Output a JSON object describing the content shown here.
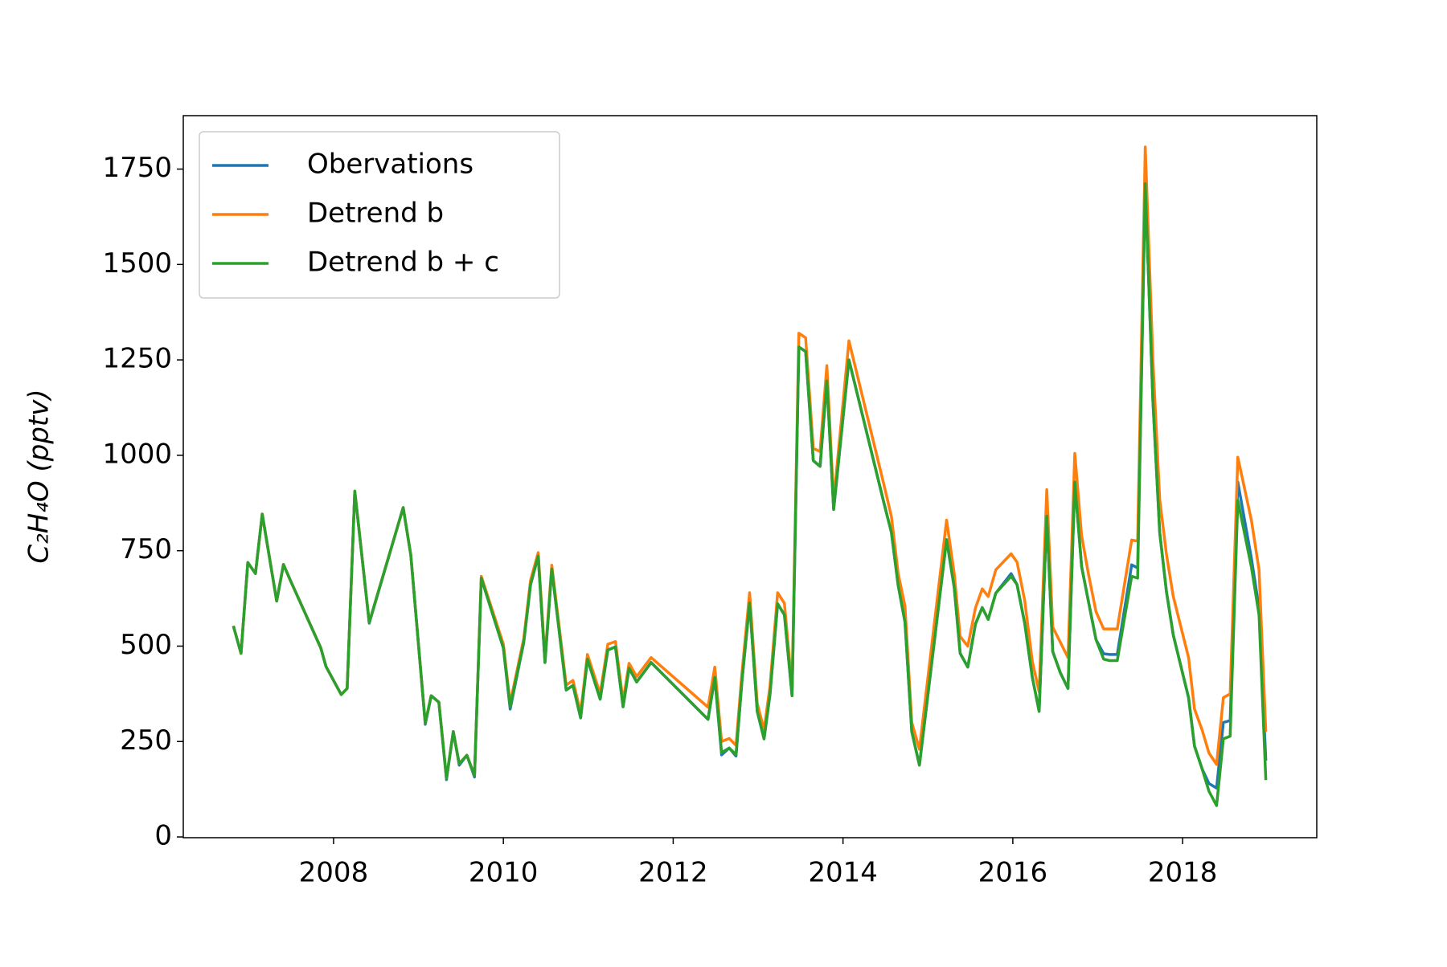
{
  "chart_data": {
    "type": "line",
    "ylabel": "C₂H₄O (pptv)",
    "x": [
      2006.82,
      2006.91,
      2006.99,
      2007.08,
      2007.16,
      2007.33,
      2007.41,
      2007.49,
      2007.85,
      2007.91,
      2008.09,
      2008.16,
      2008.25,
      2008.42,
      2008.82,
      2008.91,
      2009.08,
      2009.15,
      2009.24,
      2009.33,
      2009.41,
      2009.48,
      2009.57,
      2009.66,
      2009.74,
      2010.0,
      2010.08,
      2010.24,
      2010.32,
      2010.41,
      2010.49,
      2010.57,
      2010.74,
      2010.82,
      2010.91,
      2010.99,
      2011.14,
      2011.23,
      2011.32,
      2011.41,
      2011.48,
      2011.57,
      2011.74,
      2012.41,
      2012.49,
      2012.57,
      2012.66,
      2012.74,
      2012.81,
      2012.9,
      2012.99,
      2013.07,
      2013.14,
      2013.23,
      2013.31,
      2013.4,
      2013.48,
      2013.56,
      2013.65,
      2013.73,
      2013.81,
      2013.89,
      2014.07,
      2014.48,
      2014.57,
      2014.65,
      2014.73,
      2014.81,
      2014.9,
      2015.22,
      2015.31,
      2015.38,
      2015.47,
      2015.56,
      2015.64,
      2015.71,
      2015.8,
      2015.98,
      2016.05,
      2016.14,
      2016.23,
      2016.31,
      2016.4,
      2016.47,
      2016.56,
      2016.65,
      2016.73,
      2016.81,
      2016.89,
      2016.98,
      2017.07,
      2017.14,
      2017.23,
      2017.4,
      2017.47,
      2017.56,
      2017.65,
      2017.73,
      2017.81,
      2017.89,
      2018.07,
      2018.14,
      2018.23,
      2018.31,
      2018.4,
      2018.48,
      2018.56,
      2018.65,
      2018.81,
      2018.9,
      2018.98
    ],
    "series": [
      {
        "name": "Obervations",
        "color": "#1f77b4",
        "values": [
          553,
          481,
          719,
          690,
          846,
          618,
          714,
          673,
          495,
          447,
          373,
          389,
          906,
          560,
          863,
          738,
          295,
          370,
          353,
          150,
          276,
          188,
          214,
          157,
          678,
          495,
          335,
          510,
          661,
          736,
          457,
          702,
          385,
          397,
          312,
          466,
          361,
          490,
          498,
          341,
          442,
          406,
          457,
          308,
          418,
          215,
          233,
          212,
          409,
          613,
          329,
          257,
          373,
          611,
          582,
          370,
          1284,
          1272,
          986,
          971,
          1195,
          858,
          1250,
          877,
          798,
          659,
          563,
          276,
          188,
          779,
          654,
          481,
          445,
          558,
          601,
          570,
          639,
          690,
          661,
          560,
          418,
          329,
          841,
          486,
          430,
          389,
          930,
          709,
          618,
          517,
          480,
          478,
          478,
          713,
          705,
          1712,
          1142,
          798,
          642,
          529,
          365,
          238,
          178,
          140,
          128,
          300,
          305,
          930,
          730,
          600,
          200
        ]
      },
      {
        "name": "Detrend b",
        "color": "#ff7f0e",
        "values": [
          553,
          481,
          719,
          690,
          846,
          618,
          714,
          673,
          495,
          447,
          373,
          389,
          906,
          562,
          863,
          738,
          298,
          370,
          353,
          154,
          276,
          192,
          214,
          161,
          683,
          505,
          350,
          520,
          672,
          745,
          468,
          712,
          398,
          410,
          325,
          478,
          375,
          505,
          512,
          355,
          455,
          420,
          470,
          340,
          445,
          250,
          258,
          240,
          430,
          640,
          350,
          280,
          395,
          640,
          612,
          390,
          1320,
          1308,
          1018,
          1010,
          1235,
          880,
          1300,
          925,
          840,
          690,
          605,
          300,
          230,
          830,
          690,
          525,
          500,
          600,
          650,
          630,
          700,
          742,
          720,
          620,
          460,
          380,
          910,
          550,
          510,
          470,
          1005,
          790,
          690,
          590,
          545,
          545,
          545,
          778,
          775,
          1808,
          1250,
          885,
          740,
          630,
          470,
          335,
          280,
          220,
          190,
          365,
          375,
          995,
          830,
          700,
          275
        ]
      },
      {
        "name": "Detrend b + c",
        "color": "#2ca02c",
        "values": [
          553,
          481,
          719,
          690,
          846,
          618,
          714,
          673,
          495,
          447,
          373,
          389,
          906,
          562,
          863,
          738,
          298,
          370,
          353,
          154,
          276,
          192,
          214,
          161,
          678,
          495,
          341,
          510,
          661,
          736,
          457,
          702,
          385,
          397,
          312,
          466,
          361,
          490,
          498,
          341,
          442,
          406,
          457,
          308,
          418,
          221,
          233,
          216,
          409,
          613,
          329,
          257,
          373,
          611,
          582,
          370,
          1284,
          1272,
          986,
          971,
          1195,
          858,
          1250,
          877,
          798,
          659,
          563,
          276,
          188,
          779,
          654,
          481,
          445,
          558,
          601,
          570,
          639,
          683,
          661,
          560,
          418,
          329,
          841,
          486,
          430,
          389,
          930,
          709,
          618,
          517,
          466,
          462,
          462,
          683,
          678,
          1712,
          1142,
          798,
          642,
          529,
          365,
          238,
          178,
          120,
          82,
          257,
          264,
          882,
          707,
          582,
          149
        ]
      }
    ],
    "xlim": [
      2006.23,
      2019.58
    ],
    "xticks": [
      2008,
      2010,
      2012,
      2014,
      2016,
      2018
    ],
    "ylim": [
      -2,
      1890
    ],
    "yticks": [
      0,
      250,
      500,
      750,
      1000,
      1250,
      1500,
      1750
    ],
    "legend": "upper left",
    "grid": false
  }
}
